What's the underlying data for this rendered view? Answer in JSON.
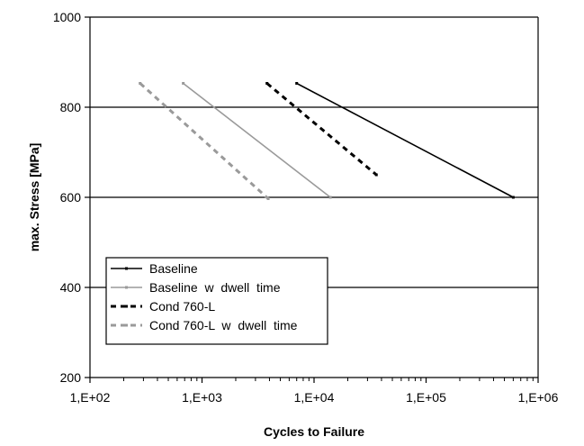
{
  "chart_data": {
    "type": "line",
    "xlabel": "Cycles to Failure",
    "ylabel": "max. Stress [MPa]",
    "xscale": "log",
    "xlim": [
      100,
      1000000
    ],
    "ylim": [
      200,
      1000
    ],
    "xtick_labels": [
      "1,E+02",
      "1,E+03",
      "1,E+04",
      "1,E+05",
      "1,E+06"
    ],
    "xtick_values": [
      100,
      1000,
      10000,
      100000,
      1000000
    ],
    "ytick_labels": [
      "200",
      "400",
      "600",
      "800",
      "1000"
    ],
    "ytick_values": [
      200,
      400,
      600,
      800,
      1000
    ],
    "grid": "horizontal major",
    "legend_position": "lower-left",
    "series": [
      {
        "name": "Baseline",
        "color": "#000000",
        "dash": "solid",
        "points": [
          [
            7000,
            853
          ],
          [
            600000,
            600
          ]
        ]
      },
      {
        "name": "Baseline  w  dwell  time",
        "color": "#9a9a9a",
        "dash": "solid",
        "points": [
          [
            680,
            853
          ],
          [
            14000,
            600
          ]
        ]
      },
      {
        "name": "Cond 760-L",
        "color": "#000000",
        "dash": "dashed",
        "points": [
          [
            3800,
            853
          ],
          [
            36000,
            650
          ]
        ]
      },
      {
        "name": "Cond 760-L  w  dwell  time",
        "color": "#9a9a9a",
        "dash": "dashed",
        "points": [
          [
            280,
            853
          ],
          [
            3900,
            597
          ]
        ]
      }
    ]
  }
}
